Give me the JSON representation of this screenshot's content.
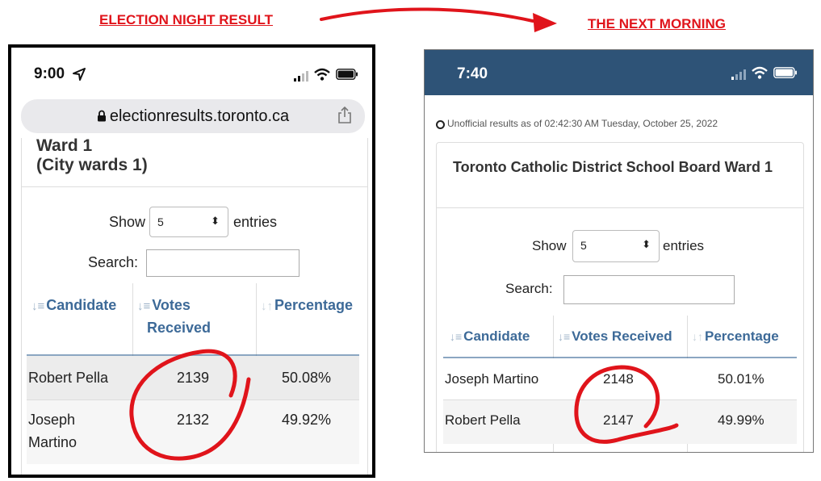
{
  "captions": {
    "left": "ELECTION NIGHT RESULT",
    "right": "THE NEXT MORNING"
  },
  "colors": {
    "accent_red": "#e0141b",
    "header_blue": "#3d6a98",
    "status_bar_blue": "#2e5377"
  },
  "left_phone": {
    "time": "9:00",
    "url": "electionresults.toronto.ca",
    "title": "Ward 1\n(City wards 1)",
    "show_label": "Show",
    "entries_value": "5",
    "entries_label": "entries",
    "search_label": "Search:",
    "headers": {
      "candidate": "Candidate",
      "votes_line1": "Votes",
      "votes_line2": "Received",
      "percentage": "Percentage"
    },
    "rows": [
      {
        "candidate": "Robert Pella",
        "votes": "2139",
        "percentage": "50.08%"
      },
      {
        "candidate_line1": "Joseph",
        "candidate_line2": "Martino",
        "votes": "2132",
        "percentage": "49.92%"
      }
    ]
  },
  "right_phone": {
    "time": "7:40",
    "notice": "Unofficial results as of 02:42:30 AM Tuesday, October 25, 2022",
    "title": "Toronto Catholic District School Board Ward 1",
    "show_label": "Show",
    "entries_value": "5",
    "entries_label": "entries",
    "search_label": "Search:",
    "headers": {
      "candidate": "Candidate",
      "votes": "Votes Received",
      "percentage": "Percentage"
    },
    "rows": [
      {
        "candidate": "Joseph Martino",
        "votes": "2148",
        "percentage": "50.01%"
      },
      {
        "candidate": "Robert Pella",
        "votes": "2147",
        "percentage": "49.99%"
      }
    ]
  }
}
